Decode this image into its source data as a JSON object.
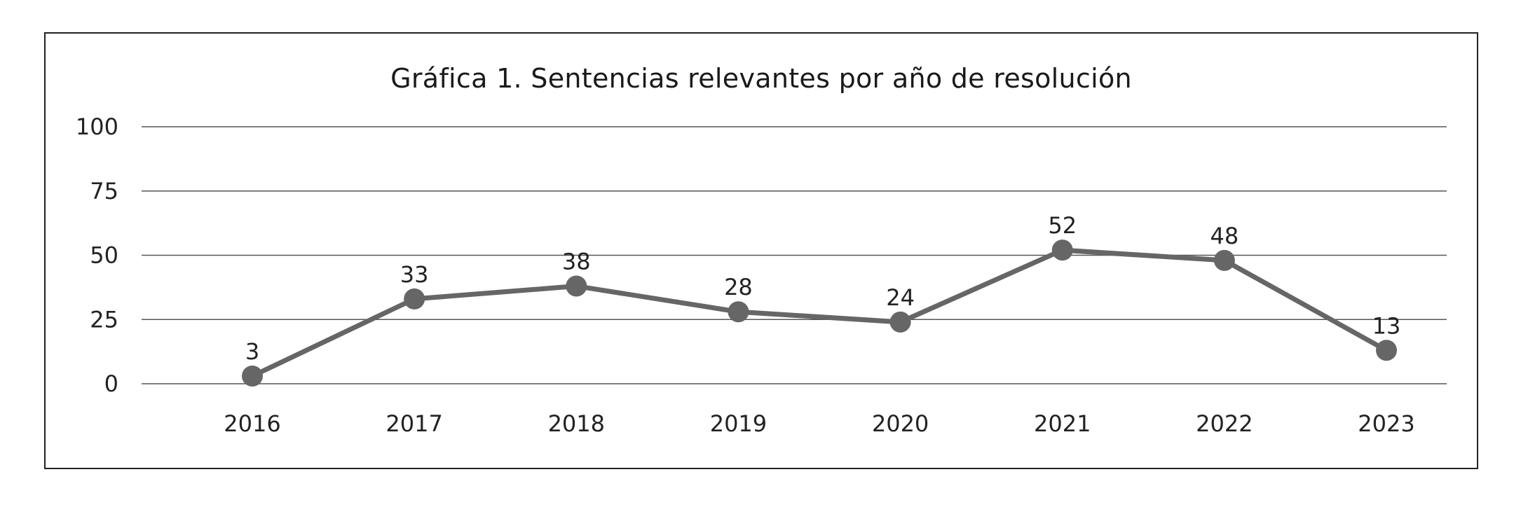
{
  "chart_data": {
    "type": "line",
    "title": "Gráfica 1.  Sentencias relevantes por año de resolución",
    "xlabel": "",
    "ylabel": "",
    "categories": [
      "2016",
      "2017",
      "2018",
      "2019",
      "2020",
      "2021",
      "2022",
      "2023"
    ],
    "series": [
      {
        "values": [
          3,
          33,
          38,
          28,
          24,
          52,
          48,
          13
        ],
        "data_labels": [
          "3",
          "33",
          "38",
          "28",
          "24",
          "52",
          "48",
          "13"
        ],
        "color": "#666666"
      }
    ],
    "yticks": [
      "0",
      "25",
      "50",
      "75",
      "100"
    ],
    "ylim": [
      0,
      100
    ],
    "grid": true,
    "legend": "none"
  }
}
